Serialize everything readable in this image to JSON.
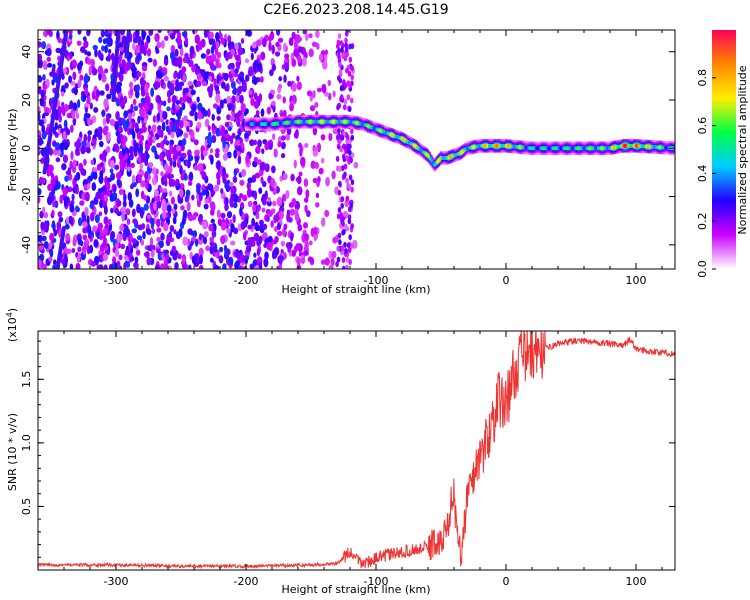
{
  "title": "C2E6.2023.208.14.45.G19",
  "colorbar": {
    "label": "Normalized spectral amplitude",
    "range": [
      0.0,
      1.0
    ],
    "tick_values": [
      0.0,
      0.2,
      0.4,
      0.6,
      0.8
    ],
    "tick_labels": [
      "0.0",
      "0.2",
      "0.4",
      "0.6",
      "0.8"
    ],
    "colors": [
      "#ffffff",
      "#cc00ff",
      "#2200ff",
      "#00ccff",
      "#00ff44",
      "#ffee00",
      "#ff8800",
      "#ff0055"
    ]
  },
  "chart_data": [
    {
      "type": "heatmap",
      "xlabel": "Height of straight line (km)",
      "ylabel": "Frequency (Hz)",
      "xlim": [
        -360,
        130
      ],
      "ylim": [
        -50,
        49
      ],
      "x_ticks": [
        -300,
        -200,
        -100,
        0,
        100
      ],
      "x_tick_labels": [
        "-300",
        "-200",
        "-100",
        "0",
        "100"
      ],
      "y_ticks": [
        -40,
        -20,
        0,
        20,
        40
      ],
      "y_tick_labels": [
        "-40",
        "-20",
        "0",
        "20",
        "40"
      ],
      "ridge_frequency": {
        "x": [
          -200,
          -195,
          -180,
          -160,
          -140,
          -120,
          -110,
          -100,
          -90,
          -80,
          -70,
          -60,
          -55,
          -50,
          -45,
          -40,
          -35,
          -30,
          -20,
          -10,
          0,
          20,
          50,
          80,
          90,
          100,
          130
        ],
        "y": [
          10,
          10,
          10,
          11,
          11,
          11,
          10,
          8,
          6,
          4,
          1,
          -3,
          -7,
          -4,
          -4,
          -3,
          -2,
          0,
          1,
          1,
          1,
          0,
          0,
          0,
          1,
          1,
          0
        ]
      },
      "ridge_amplitude": {
        "x": [
          -200,
          -180,
          -160,
          -140,
          -120,
          -100,
          -90,
          -80,
          -70,
          -60,
          -50,
          -40,
          -30,
          -20,
          -10,
          0,
          20,
          50,
          80,
          90,
          100,
          130
        ],
        "y": [
          0.35,
          0.55,
          0.6,
          0.7,
          0.65,
          0.6,
          0.7,
          0.75,
          0.7,
          0.65,
          0.7,
          0.8,
          0.65,
          0.7,
          0.85,
          0.8,
          0.5,
          0.55,
          0.65,
          0.98,
          0.9,
          0.45
        ]
      },
      "noise_region_x": [
        -360,
        -115
      ],
      "diagonal_streaks": [
        {
          "x": [
            -355,
            -338
          ],
          "y": [
            -10,
            49
          ]
        },
        {
          "x": [
            -345,
            -340
          ],
          "y": [
            -50,
            -33
          ]
        },
        {
          "x": [
            -302,
            -298
          ],
          "y": [
            20,
            49
          ]
        },
        {
          "x": [
            -292,
            -290
          ],
          "y": [
            38,
            49
          ]
        }
      ]
    },
    {
      "type": "line",
      "xlabel": "Height of straight line (km)",
      "ylabel": "SNR (10 * v/v)",
      "y_multiplier": "(x10",
      "y_multiplier_exp": "4",
      "y_multiplier_close": ")",
      "xlim": [
        -360,
        130
      ],
      "ylim": [
        0,
        1.88
      ],
      "x_ticks": [
        -300,
        -200,
        -100,
        0,
        100
      ],
      "x_tick_labels": [
        "-300",
        "-200",
        "-100",
        "0",
        "100"
      ],
      "y_ticks": [
        0.5,
        1.0,
        1.5
      ],
      "y_tick_labels": [
        "0.5",
        "1.0",
        "1.5"
      ],
      "series": [
        {
          "color": "#ee3333",
          "x": [
            -360,
            -300,
            -250,
            -200,
            -150,
            -130,
            -120,
            -115,
            -110,
            -100,
            -90,
            -80,
            -70,
            -60,
            -55,
            -50,
            -45,
            -42,
            -40,
            -38,
            -35,
            -30,
            -25,
            -20,
            -15,
            -10,
            -5,
            0,
            5,
            10,
            15,
            20,
            30,
            40,
            50,
            60,
            70,
            80,
            90,
            95,
            100,
            110,
            120,
            130
          ],
          "y": [
            0.04,
            0.04,
            0.03,
            0.03,
            0.04,
            0.05,
            0.14,
            0.08,
            0.05,
            0.09,
            0.12,
            0.14,
            0.16,
            0.18,
            0.22,
            0.2,
            0.35,
            0.55,
            0.6,
            0.3,
            0.12,
            0.55,
            0.75,
            0.9,
            1.0,
            1.2,
            1.35,
            1.3,
            1.5,
            1.65,
            1.7,
            1.72,
            1.74,
            1.78,
            1.8,
            1.8,
            1.79,
            1.78,
            1.76,
            1.82,
            1.74,
            1.72,
            1.71,
            1.7
          ]
        }
      ]
    }
  ]
}
